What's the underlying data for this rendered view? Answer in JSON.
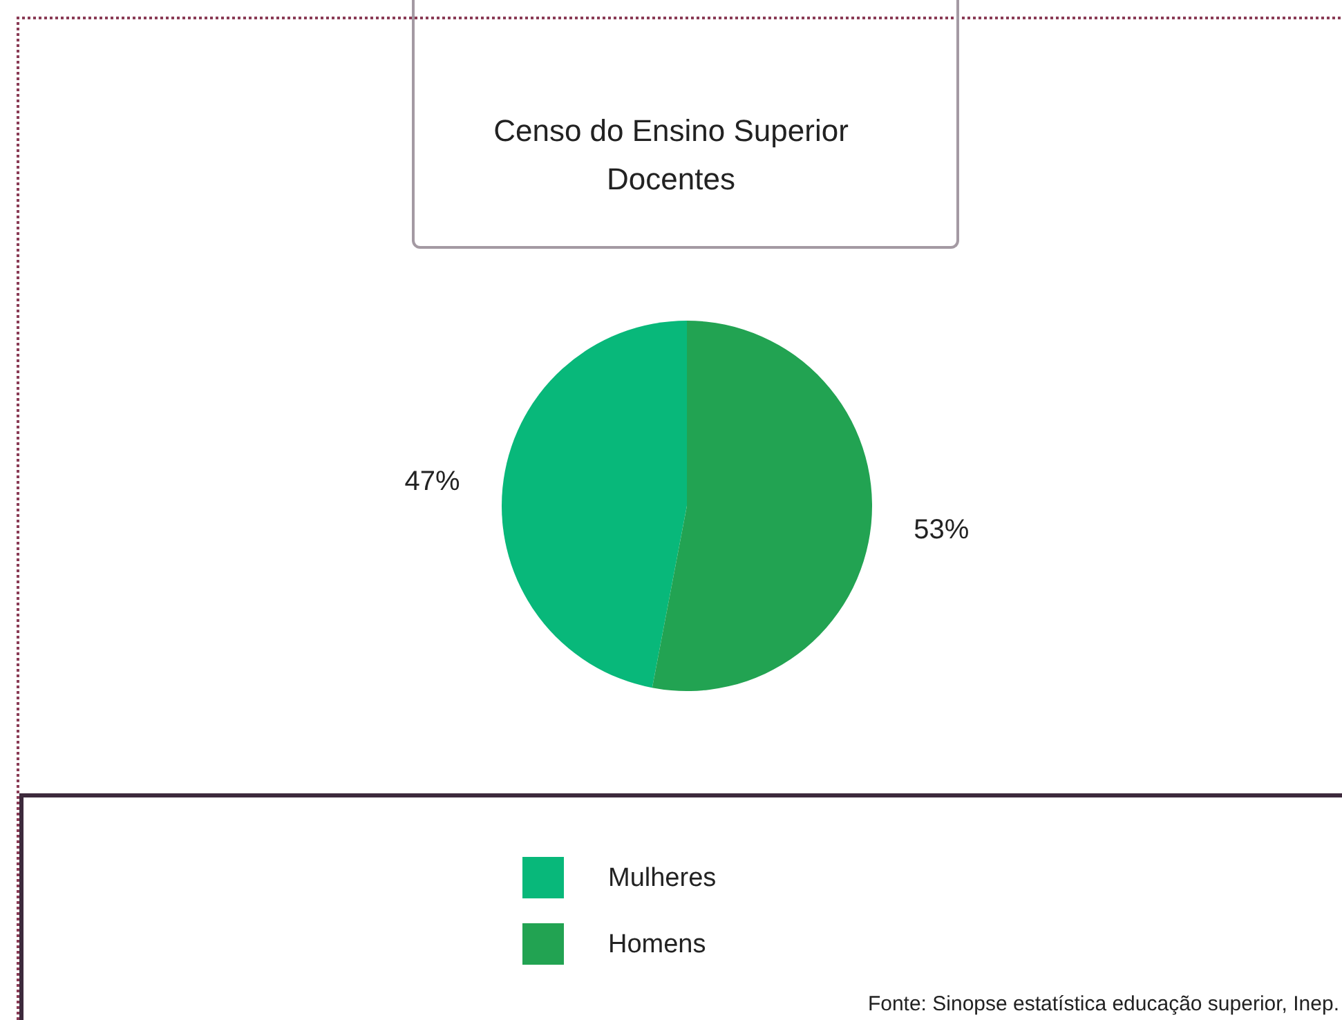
{
  "chart_data": {
    "type": "pie",
    "title": [
      "Censo do Ensino Superior",
      "Docentes"
    ],
    "categories": [
      "Mulheres",
      "Homens"
    ],
    "values": [
      47,
      53
    ],
    "colors": [
      "#08b87a",
      "#22a352"
    ],
    "value_labels": [
      "47%",
      "53%"
    ],
    "legend": "bottom",
    "annotations": [
      "Fonte: Sinopse estatística educação superior, Inep."
    ]
  }
}
